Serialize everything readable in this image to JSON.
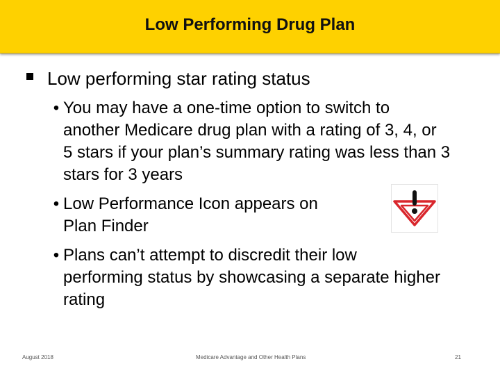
{
  "slide": {
    "title": "Low Performing Drug Plan",
    "bullet": "Low performing star rating status",
    "sub_bullets": [
      {
        "lines": [
          "You may have a one-time option to switch to",
          "another Medicare drug plan with a rating of 3, 4, or",
          "5 stars if your plan’s summary rating was less than 3",
          "stars for 3 years"
        ]
      },
      {
        "lines": [
          "Low Performance Icon appears on",
          "Plan Finder"
        ]
      },
      {
        "lines": [
          "Plans can’t attempt to discredit their low",
          "performing status by showcasing a separate higher",
          "rating"
        ]
      }
    ],
    "bullet_symbol": "•",
    "icon": {
      "name": "low-performance-warning-icon",
      "exclamation": "!"
    }
  },
  "footer": {
    "date": "August 2018",
    "center": "Medicare Advantage and Other Health Plans",
    "page": "21"
  },
  "colors": {
    "title_bar": "#fed100",
    "icon_red": "#d9262c"
  }
}
